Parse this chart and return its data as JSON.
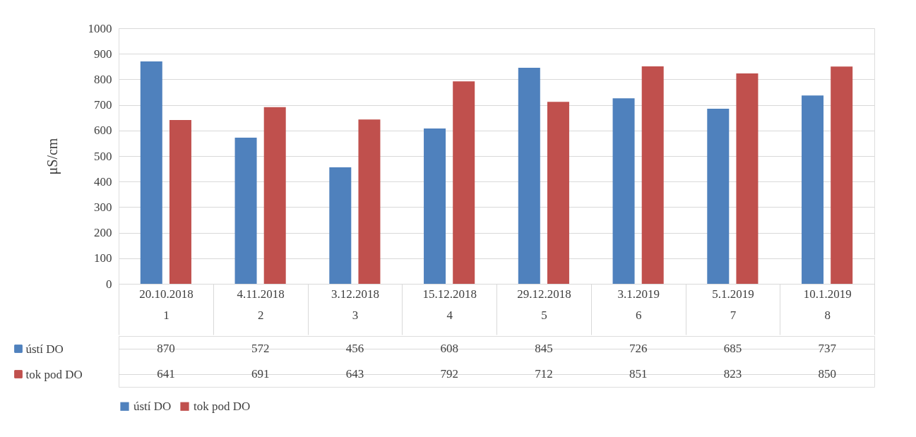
{
  "chart_data": {
    "type": "bar",
    "ylabel": "μS/cm",
    "categories": [
      "20.10.2018\n1",
      "4.11.2018\n2",
      "3.12.2018\n3",
      "15.12.2018\n4",
      "29.12.2018\n5",
      "3.1.2019\n6",
      "5.1.2019\n7",
      "10.1.2019\n8"
    ],
    "series": [
      {
        "name": "ústí DO",
        "color": "#4f81bd",
        "values": [
          870,
          572,
          456,
          608,
          845,
          726,
          685,
          737
        ]
      },
      {
        "name": "tok pod DO",
        "color": "#c0504d",
        "values": [
          641,
          691,
          643,
          792,
          712,
          851,
          823,
          850
        ]
      }
    ],
    "ylim": [
      0,
      1000
    ],
    "yticks": [
      0,
      100,
      200,
      300,
      400,
      500,
      600,
      700,
      800,
      900,
      1000
    ],
    "grid": "y",
    "legend": "bottom",
    "data_labels": true
  }
}
